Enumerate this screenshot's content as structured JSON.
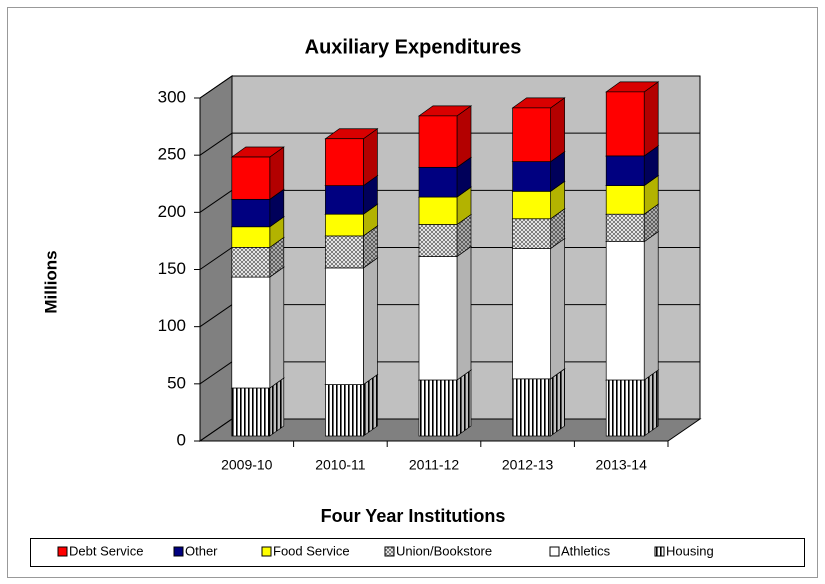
{
  "chart_data": {
    "type": "bar3d-stacked",
    "title": "Auxiliary Expenditures",
    "ylabel": "Millions",
    "xlabel": "Four Year Institutions",
    "categories": [
      "2009-10",
      "2010-11",
      "2011-12",
      "2012-13",
      "2013-14"
    ],
    "series": [
      {
        "name": "Housing",
        "color": "#ffffff",
        "hatch": "vertical",
        "values": [
          42,
          45,
          49,
          50,
          49
        ]
      },
      {
        "name": "Athletics",
        "color": "#ffffff",
        "values": [
          97,
          102,
          108,
          114,
          121
        ]
      },
      {
        "name": "Union/Bookstore",
        "color": "#ffffff",
        "hatch": "crosshatch",
        "values": [
          26,
          28,
          28,
          26,
          24
        ]
      },
      {
        "name": "Food Service",
        "color": "#ffff00",
        "values": [
          18,
          19,
          24,
          24,
          25
        ]
      },
      {
        "name": "Other",
        "color": "#000080",
        "values": [
          24,
          25,
          26,
          26,
          26
        ]
      },
      {
        "name": "Debt Service",
        "color": "#ff0000",
        "values": [
          37,
          41,
          45,
          47,
          56
        ]
      }
    ],
    "ylim": [
      0,
      300
    ],
    "yticks": [
      0,
      50,
      100,
      150,
      200,
      250,
      300
    ],
    "grid": true
  }
}
